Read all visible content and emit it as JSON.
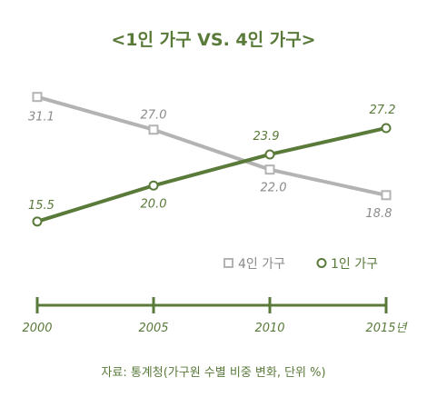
{
  "chart_data": {
    "type": "line",
    "title": "<1인 가구 VS. 4인 가구>",
    "x": [
      2000,
      2005,
      2010,
      2015
    ],
    "tick_labels": [
      "2000",
      "2005",
      "2010",
      "2015년"
    ],
    "series": [
      {
        "name": "4인 가구",
        "values": [
          31.1,
          27.0,
          22.0,
          18.8
        ],
        "color": "#b3b3b3",
        "marker": "square"
      },
      {
        "name": "1인 가구",
        "values": [
          15.5,
          20.0,
          23.9,
          27.2
        ],
        "color": "#5a7a3a",
        "marker": "circle"
      }
    ],
    "ylim": [
      14,
      33
    ],
    "grid": false,
    "legend": "bottom-right",
    "source": "자료: 통계청(가구원 수별 비중 변화, 단위 %)"
  },
  "colors": {
    "accent": "#5a7a3a",
    "gray": "#b3b3b3"
  }
}
